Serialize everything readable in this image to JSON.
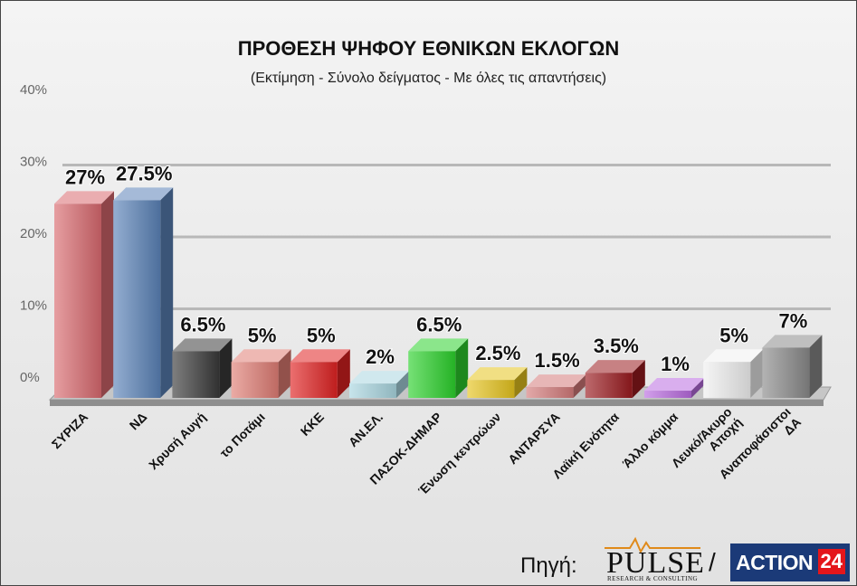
{
  "chart_data": {
    "type": "bar",
    "title": "ΠΡΟΘΕΣΗ ΨΗΦΟΥ ΕΘΝΙΚΩΝ ΕΚΛΟΓΩΝ",
    "subtitle": "(Εκτίμηση - Σύνολο δείγματος - Με όλες τις απαντήσεις)",
    "categories": [
      "ΣΥΡΙΖΑ",
      "ΝΔ",
      "Χρυσή Αυγή",
      "το Ποτάμι",
      "ΚΚΕ",
      "ΑΝ.ΕΛ.",
      "ΠΑΣΟΚ-ΔΗΜΑΡ",
      "Ένωση κεντρώων",
      "ΑΝΤΑΡΣΥΑ",
      "Λαϊκή Ενότητα",
      "Άλλο κόμμα",
      "Λευκό/Άκυρο Αποχή",
      "Αναποφάσιστοι ΔΑ"
    ],
    "values": [
      27,
      27.5,
      6.5,
      5,
      5,
      2,
      6.5,
      2.5,
      1.5,
      3.5,
      1,
      5,
      7
    ],
    "data_labels": [
      "27%",
      "27.5%",
      "6.5%",
      "5%",
      "5%",
      "2%",
      "6.5%",
      "2.5%",
      "1.5%",
      "3.5%",
      "1%",
      "5%",
      "7%"
    ],
    "ylim": [
      0,
      40
    ],
    "yticks": [
      "0%",
      "10%",
      "20%",
      "30%",
      "40%"
    ],
    "grid": true,
    "legend": "none",
    "colors": [
      "#d9696f",
      "#5b82b8",
      "#3a3a3a",
      "#e07d74",
      "#e02222",
      "#a9d6e0",
      "#2cd12c",
      "#e6c51e",
      "#d47a7a",
      "#9a1a1e",
      "#b96be0",
      "#f0f0f0",
      "#8a8a8a"
    ]
  },
  "source": {
    "label": "Πηγή:",
    "pulse_logo": "PULSE",
    "pulse_sub": "RESEARCH & CONSULTING",
    "separator": "/",
    "action_logo_word": "ACTION",
    "action_logo_num": "24"
  }
}
